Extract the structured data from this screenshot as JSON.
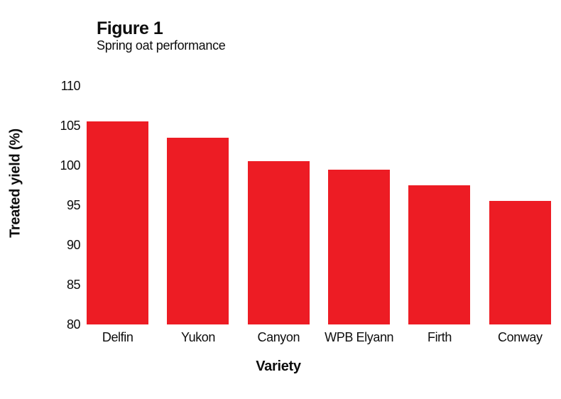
{
  "figure": {
    "title": "Figure 1",
    "subtitle": "Spring oat performance"
  },
  "chart_data": {
    "type": "bar",
    "title": "Figure 1",
    "subtitle": "Spring oat performance",
    "categories": [
      "Delfin",
      "Yukon",
      "Canyon",
      "WPB Elyann",
      "Firth",
      "Conway"
    ],
    "values": [
      105.5,
      103.5,
      100.5,
      99.5,
      97.5,
      95.5
    ],
    "xlabel": "Variety",
    "ylabel": "Treated yield (%)",
    "ylim": [
      80,
      110
    ],
    "yticks": [
      80,
      85,
      90,
      95,
      100,
      105,
      110
    ],
    "grid": false,
    "legend": false,
    "colors": {
      "bar": "#ED1C24",
      "text": "#0D0D0D",
      "background": "#FFFFFF"
    }
  }
}
